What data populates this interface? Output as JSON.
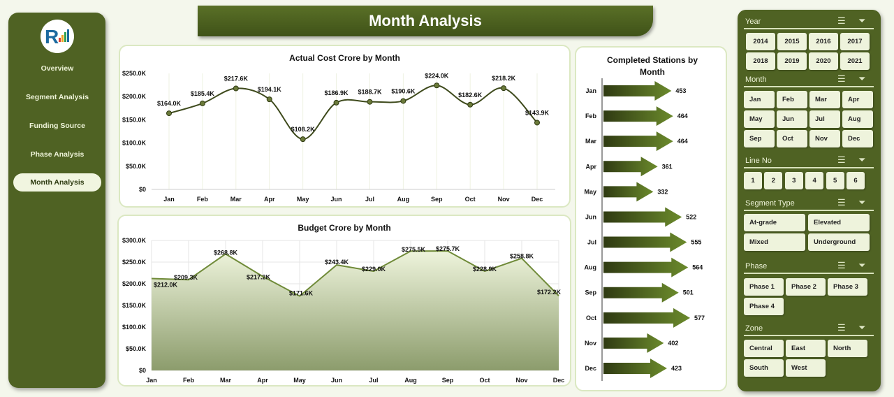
{
  "nav": {
    "items": [
      {
        "label": "Overview"
      },
      {
        "label": "Segment Analysis"
      },
      {
        "label": "Funding Source"
      },
      {
        "label": "Phase Analysis"
      },
      {
        "label": "Month Analysis",
        "active": true
      }
    ]
  },
  "header": {
    "title": "Month Analysis"
  },
  "colors": {
    "sidebar": "#4f6223",
    "accent": "#5a7027",
    "line": "#3e4a1c",
    "active_bg": "#f1f5e0"
  },
  "chart_data": [
    {
      "type": "line",
      "title": "Actual Cost Crore by Month",
      "categories": [
        "Jan",
        "Feb",
        "Mar",
        "Apr",
        "May",
        "Jun",
        "Jul",
        "Aug",
        "Sep",
        "Oct",
        "Nov",
        "Dec"
      ],
      "values": [
        164.0,
        185.4,
        217.6,
        194.1,
        108.2,
        186.9,
        188.7,
        190.6,
        224.0,
        182.6,
        218.2,
        143.9
      ],
      "labels": [
        "$164.0K",
        "$185.4K",
        "$217.6K",
        "$194.1K",
        "$108.2K",
        "$186.9K",
        "$188.7K",
        "$190.6K",
        "$224.0K",
        "$182.6K",
        "$218.2K",
        "$143.9K"
      ],
      "yticks": [
        "$0",
        "$50.0K",
        "$100.0K",
        "$150.0K",
        "$200.0K",
        "$250.0K"
      ],
      "ylim": [
        0,
        250
      ],
      "unit": "K",
      "smooth": true,
      "grid": "vertical"
    },
    {
      "type": "area",
      "title": "Budget Crore by Month",
      "categories": [
        "Jan",
        "Feb",
        "Mar",
        "Apr",
        "May",
        "Jun",
        "Jul",
        "Aug",
        "Sep",
        "Oct",
        "Nov",
        "Dec"
      ],
      "values": [
        212.0,
        209.3,
        268.8,
        217.2,
        171.6,
        243.4,
        229.0,
        275.5,
        275.7,
        228.9,
        258.8,
        172.2
      ],
      "labels": [
        "$212.0K",
        "$209.3K",
        "$268.8K",
        "$217.2K",
        "$171.6K",
        "$243.4K",
        "$229.0K",
        "$275.5K",
        "$275.7K",
        "$228.9K",
        "$258.8K",
        "$172.2K"
      ],
      "yticks": [
        "$0",
        "$50.0K",
        "$100.0K",
        "$150.0K",
        "$200.0K",
        "$250.0K",
        "$300.0K"
      ],
      "ylim": [
        0,
        300
      ],
      "unit": "K",
      "grid": "both"
    },
    {
      "type": "bar",
      "orientation": "horizontal",
      "mark": "arrow",
      "title": "Completed Stations by Month",
      "categories": [
        "Jan",
        "Feb",
        "Mar",
        "Apr",
        "May",
        "Jun",
        "Jul",
        "Aug",
        "Sep",
        "Oct",
        "Nov",
        "Dec"
      ],
      "values": [
        453,
        464,
        464,
        361,
        332,
        522,
        555,
        564,
        501,
        577,
        402,
        423
      ]
    }
  ],
  "slicers": [
    {
      "title": "Year",
      "items": [
        "2014",
        "2015",
        "2016",
        "2017",
        "2018",
        "2019",
        "2020",
        "2021"
      ]
    },
    {
      "title": "Month",
      "items": [
        "Jan",
        "Feb",
        "Mar",
        "Apr",
        "May",
        "Jun",
        "Jul",
        "Aug",
        "Sep",
        "Oct",
        "Nov",
        "Dec"
      ]
    },
    {
      "title": "Line No",
      "items": [
        "1",
        "2",
        "3",
        "4",
        "5",
        "6"
      ]
    },
    {
      "title": "Segment Type",
      "items": [
        "At-grade",
        "Elevated",
        "Mixed",
        "Underground"
      ]
    },
    {
      "title": "Phase",
      "items": [
        "Phase 1",
        "Phase 2",
        "Phase 3",
        "Phase 4"
      ]
    },
    {
      "title": "Zone",
      "items": [
        "Central",
        "East",
        "North",
        "South",
        "West"
      ]
    }
  ]
}
